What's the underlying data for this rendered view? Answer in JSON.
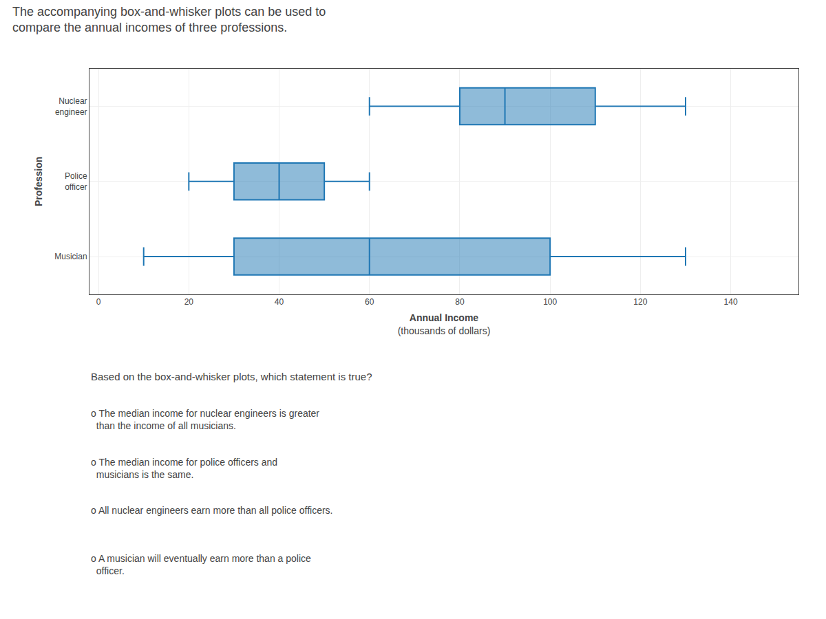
{
  "chart_data": {
    "type": "box",
    "title": "The accompanying box-and-whisker plots can be used to\ncompare the annual incomes of three professions.",
    "xlabel": "Annual Income\n(thousands of dollars)",
    "ylabel": "Profession",
    "orientation": "horizontal",
    "categories": [
      "Nuclear\nengineer",
      "Police\nofficer",
      "Musician"
    ],
    "boxes": [
      {
        "min": 60,
        "q1": 80,
        "median": 90,
        "q3": 110,
        "max": 130
      },
      {
        "min": 20,
        "q1": 30,
        "median": 40,
        "q3": 50,
        "max": 60
      },
      {
        "min": 10,
        "q1": 30,
        "median": 60,
        "q3": 100,
        "max": 130
      }
    ],
    "xlim": [
      -2,
      155
    ],
    "xticks": [
      0,
      20,
      40,
      60,
      80,
      100,
      120,
      140
    ],
    "grid": true,
    "annotations": [
      "Based on the box-and-whisker plots, which statement is true?",
      "o The median income for nuclear engineers is greater\n  than the income of all musicians.",
      "o The median income for police officers and\n  musicians is the same.",
      "o All nuclear engineers earn more than all police officers.",
      "o A musician will eventually earn more than a police\n  officer."
    ]
  }
}
